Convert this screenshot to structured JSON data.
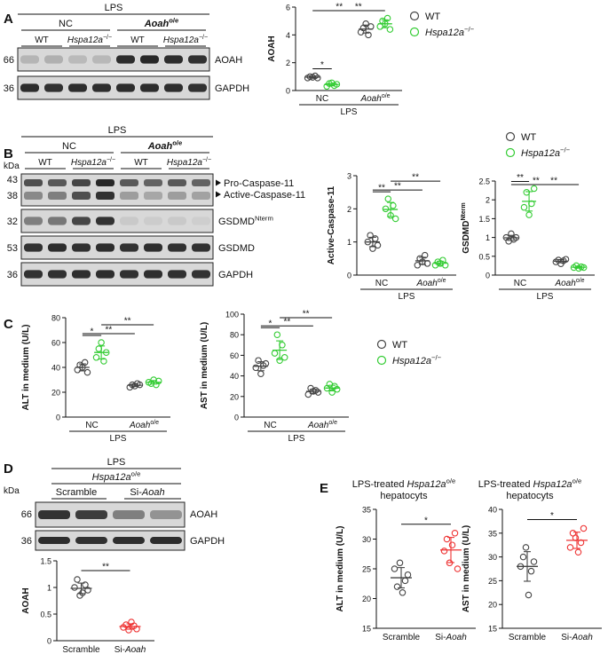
{
  "panels": {
    "A": {
      "letter": "A",
      "blot": {
        "treatment": "LPS",
        "groups": [
          "NC",
          "Aoah"
        ],
        "group_sup": "o/e",
        "genotypes": [
          "WT",
          "Hspa12a",
          "WT",
          "Hspa12a"
        ],
        "genotype_sup": "−/−",
        "rows": [
          {
            "mw": "66",
            "label": "AOAH",
            "lanes": [
              0.82,
              0.8,
              0.85,
              0.84,
              0.12,
              0.1,
              0.12,
              0.14
            ]
          },
          {
            "mw": "36",
            "label": "GAPDH",
            "lanes": [
              0.12,
              0.14,
              0.12,
              0.13,
              0.12,
              0.12,
              0.13,
              0.14
            ]
          }
        ]
      }
    },
    "B": {
      "letter": "B",
      "blot": {
        "kda": "kDa",
        "treatment": "LPS",
        "groups": [
          "NC",
          "Aoah"
        ],
        "group_sup": "o/e",
        "genotypes": [
          "WT",
          "Hspa12a",
          "WT",
          "Hspa12a"
        ],
        "genotype_sup": "−/−",
        "mw_markers": [
          "43",
          "38",
          "32",
          "53",
          "36"
        ],
        "arrow_labels": [
          "Pro-Caspase-11",
          "Active-Caspase-11"
        ],
        "gsdmd_n_label": "GSDMD",
        "gsdmd_n_sup": "Nterm",
        "gsdmd_label": "GSDMD",
        "gapdh_label": "GAPDH"
      }
    },
    "C": {
      "letter": "C"
    },
    "D": {
      "letter": "D",
      "blot": {
        "kda": "kDa",
        "treatment": "LPS",
        "line": "Hspa12a",
        "line_sup": "o/e",
        "groups": [
          "Scramble",
          "Si-"
        ],
        "si_target": "Aoah",
        "rows": [
          {
            "mw": "66",
            "label": "AOAH"
          },
          {
            "mw": "36",
            "label": "GAPDH"
          }
        ]
      }
    },
    "E": {
      "letter": "E",
      "title_prefix": "LPS-treated",
      "title_gene": "Hspa12a",
      "title_sup": "o/e",
      "title_line2": "hepatocyts"
    }
  },
  "legend": {
    "wt": "WT",
    "ko": "Hspa12a",
    "ko_sup": "−/−"
  },
  "chart_data": [
    {
      "id": "A-aoah",
      "type": "scatter",
      "ylabel": "AOAH",
      "ylim": [
        0,
        6
      ],
      "yticks": [
        0,
        2,
        4,
        6
      ],
      "categories": [
        "NC",
        "Aoah"
      ],
      "cat_sup": "o/e",
      "treatment": "LPS",
      "series": [
        {
          "name": "WT",
          "values": [
            [
              0.9,
              1.0,
              0.95,
              1.05,
              0.9
            ],
            [
              4.2,
              4.5,
              4.8,
              4.0,
              4.6
            ]
          ]
        },
        {
          "name": "Hspa12a-/-",
          "values": [
            [
              0.3,
              0.5,
              0.55,
              0.35,
              0.45
            ],
            [
              4.6,
              5.0,
              4.8,
              5.2,
              4.4
            ]
          ]
        }
      ],
      "significance": [
        {
          "from": [
            0,
            0
          ],
          "to": [
            0,
            1
          ],
          "text": "*"
        },
        {
          "from": [
            0,
            0
          ],
          "to": [
            1,
            0
          ],
          "text": "**"
        },
        {
          "from": [
            0,
            1
          ],
          "to": [
            1,
            1
          ],
          "text": "**"
        }
      ]
    },
    {
      "id": "B-casp",
      "type": "scatter",
      "ylabel": "Active-Caspase-11",
      "ylim": [
        0,
        3
      ],
      "yticks": [
        0,
        1,
        2,
        3
      ],
      "categories": [
        "NC",
        "Aoah"
      ],
      "cat_sup": "o/e",
      "treatment": "LPS",
      "series": [
        {
          "name": "WT",
          "values": [
            [
              1.0,
              1.2,
              0.8,
              1.1,
              0.9
            ],
            [
              0.3,
              0.5,
              0.4,
              0.6,
              0.35
            ]
          ]
        },
        {
          "name": "Hspa12a-/-",
          "values": [
            [
              2.0,
              2.3,
              1.8,
              2.1,
              1.7
            ],
            [
              0.3,
              0.4,
              0.35,
              0.45,
              0.3
            ]
          ]
        }
      ],
      "significance": [
        {
          "from": [
            0,
            0
          ],
          "to": [
            0,
            1
          ],
          "text": "**"
        },
        {
          "from": [
            0,
            0
          ],
          "to": [
            1,
            0
          ],
          "text": "**"
        },
        {
          "from": [
            0,
            1
          ],
          "to": [
            1,
            1
          ],
          "text": "**"
        }
      ]
    },
    {
      "id": "B-gsdmd",
      "type": "scatter",
      "ylabel": "GSDMD",
      "ylabel_sup": "Nterm",
      "ylim": [
        0,
        2.5
      ],
      "yticks": [
        0,
        0.5,
        1.0,
        1.5,
        2.0,
        2.5
      ],
      "categories": [
        "NC",
        "Aoah"
      ],
      "cat_sup": "o/e",
      "treatment": "LPS",
      "series": [
        {
          "name": "WT",
          "values": [
            [
              1.0,
              0.9,
              1.1,
              0.95,
              1.0
            ],
            [
              0.35,
              0.4,
              0.3,
              0.38,
              0.42
            ]
          ]
        },
        {
          "name": "Hspa12a-/-",
          "values": [
            [
              1.8,
              2.2,
              1.6,
              1.9,
              2.3
            ],
            [
              0.2,
              0.25,
              0.18,
              0.22,
              0.2
            ]
          ]
        }
      ],
      "significance": [
        {
          "from": [
            0,
            0
          ],
          "to": [
            0,
            1
          ],
          "text": "**"
        },
        {
          "from": [
            0,
            0
          ],
          "to": [
            1,
            0
          ],
          "text": "**"
        },
        {
          "from": [
            0,
            1
          ],
          "to": [
            1,
            1
          ],
          "text": "**"
        }
      ]
    },
    {
      "id": "C-alt",
      "type": "scatter",
      "ylabel": "ALT in medium (U/L)",
      "ylim": [
        0,
        80
      ],
      "yticks": [
        0,
        20,
        40,
        60,
        80
      ],
      "categories": [
        "NC",
        "Aoah"
      ],
      "cat_sup": "o/e",
      "treatment": "LPS",
      "series": [
        {
          "name": "WT",
          "values": [
            [
              38,
              42,
              40,
              44,
              36
            ],
            [
              24,
              26,
              25,
              27,
              26
            ]
          ]
        },
        {
          "name": "Hspa12a-/-",
          "values": [
            [
              48,
              55,
              60,
              45,
              52
            ],
            [
              28,
              27,
              30,
              26,
              29
            ]
          ]
        }
      ],
      "significance": [
        {
          "from": [
            0,
            0
          ],
          "to": [
            0,
            1
          ],
          "text": "*"
        },
        {
          "from": [
            0,
            0
          ],
          "to": [
            1,
            0
          ],
          "text": "**"
        },
        {
          "from": [
            0,
            1
          ],
          "to": [
            1,
            1
          ],
          "text": "**"
        }
      ]
    },
    {
      "id": "C-ast",
      "type": "scatter",
      "ylabel": "AST in medium (U/L)",
      "ylim": [
        0,
        100
      ],
      "yticks": [
        0,
        20,
        40,
        60,
        80,
        100
      ],
      "categories": [
        "NC",
        "Aoah"
      ],
      "cat_sup": "o/e",
      "treatment": "LPS",
      "series": [
        {
          "name": "WT",
          "values": [
            [
              48,
              55,
              42,
              50,
              52
            ],
            [
              22,
              28,
              25,
              26,
              24
            ]
          ]
        },
        {
          "name": "Hspa12a-/-",
          "values": [
            [
              62,
              80,
              55,
              70,
              58
            ],
            [
              28,
              32,
              24,
              30,
              27
            ]
          ]
        }
      ],
      "significance": [
        {
          "from": [
            0,
            0
          ],
          "to": [
            0,
            1
          ],
          "text": "*"
        },
        {
          "from": [
            0,
            0
          ],
          "to": [
            1,
            0
          ],
          "text": "**"
        },
        {
          "from": [
            0,
            1
          ],
          "to": [
            1,
            1
          ],
          "text": "**"
        }
      ]
    },
    {
      "id": "D-aoah",
      "type": "scatter",
      "ylabel": "AOAH",
      "ylim": [
        0,
        1.5
      ],
      "yticks": [
        0,
        0.5,
        1.0,
        1.5
      ],
      "categories": [
        "Scramble",
        "Si-Aoah"
      ],
      "series": [
        {
          "name": "",
          "values": [
            [
              1.0,
              1.15,
              0.85,
              0.9,
              1.05,
              0.95
            ],
            [
              0.25,
              0.3,
              0.2,
              0.35,
              0.28,
              0.22
            ]
          ]
        }
      ],
      "significance": [
        {
          "from": 0,
          "to": 1,
          "text": "**"
        }
      ]
    },
    {
      "id": "E-alt",
      "type": "scatter",
      "ylabel": "ALT in medium (U/L)",
      "ylim": [
        15,
        35
      ],
      "yticks": [
        15,
        20,
        25,
        30,
        35
      ],
      "categories": [
        "Scramble",
        "Si-Aoah"
      ],
      "series": [
        {
          "name": "",
          "values": [
            [
              25,
              22,
              26,
              21,
              23,
              24
            ],
            [
              28,
              30,
              26,
              29,
              31,
              25
            ]
          ]
        }
      ],
      "significance": [
        {
          "from": 0,
          "to": 1,
          "text": "*"
        }
      ]
    },
    {
      "id": "E-ast",
      "type": "scatter",
      "ylabel": "AST in medium (U/L)",
      "ylim": [
        15,
        40
      ],
      "yticks": [
        15,
        20,
        25,
        30,
        35,
        40
      ],
      "categories": [
        "Scramble",
        "Si-Aoah"
      ],
      "series": [
        {
          "name": "",
          "values": [
            [
              28,
              30,
              32,
              22,
              27,
              29
            ],
            [
              32,
              35,
              34,
              31,
              33,
              36
            ]
          ]
        }
      ],
      "significance": [
        {
          "from": 0,
          "to": 1,
          "text": "*"
        }
      ]
    }
  ],
  "colors": {
    "wt": "#444444",
    "ko": "#33cc33",
    "si": "#ee3333",
    "blot_bg": "#d8d8d8",
    "band": "#151515"
  }
}
